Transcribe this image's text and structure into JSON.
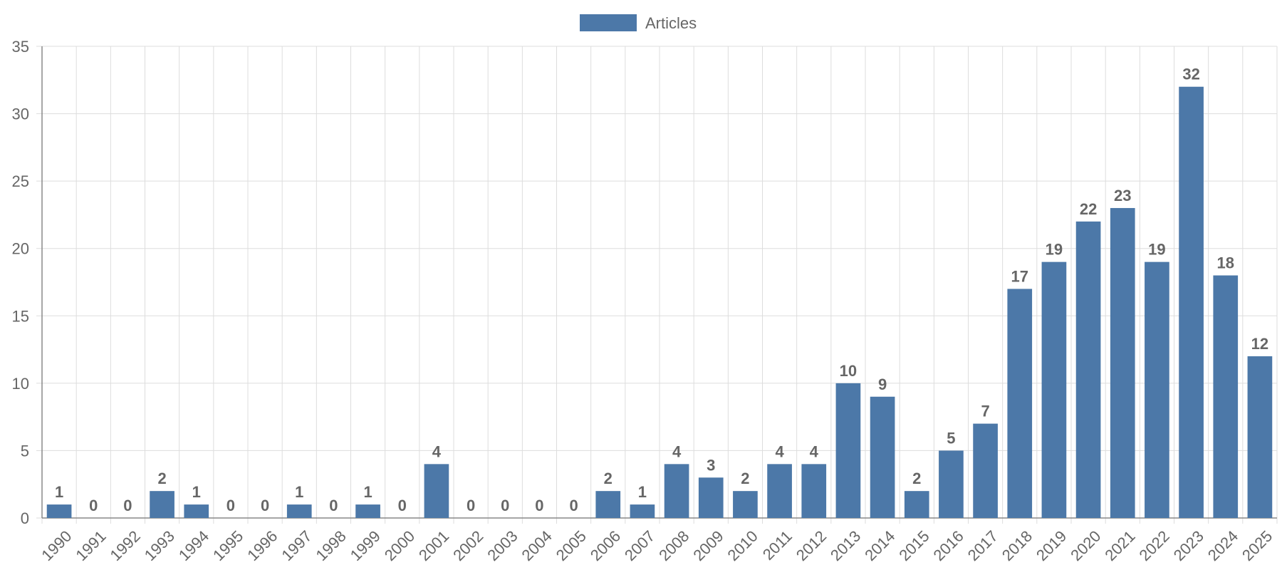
{
  "chart_data": {
    "type": "bar",
    "title": "",
    "xlabel": "",
    "ylabel": "",
    "categories": [
      "1990",
      "1991",
      "1992",
      "1993",
      "1994",
      "1995",
      "1996",
      "1997",
      "1998",
      "1999",
      "2000",
      "2001",
      "2002",
      "2003",
      "2004",
      "2005",
      "2006",
      "2007",
      "2008",
      "2009",
      "2010",
      "2011",
      "2012",
      "2013",
      "2014",
      "2015",
      "2016",
      "2017",
      "2018",
      "2019",
      "2020",
      "2021",
      "2022",
      "2023",
      "2024",
      "2025"
    ],
    "series": [
      {
        "name": "Articles",
        "values": [
          1,
          0,
          0,
          2,
          1,
          0,
          0,
          1,
          0,
          1,
          0,
          4,
          0,
          0,
          0,
          0,
          2,
          1,
          4,
          3,
          2,
          4,
          4,
          10,
          9,
          2,
          5,
          7,
          17,
          19,
          22,
          23,
          19,
          32,
          18,
          12
        ]
      }
    ],
    "ylim": [
      0,
      35
    ],
    "yticks": [
      0,
      5,
      10,
      15,
      20,
      25,
      30,
      35
    ],
    "grid": true,
    "legend_position": "top-center",
    "data_labels": true,
    "colors": {
      "bar": "#4c78a8",
      "grid": "#dddddd",
      "axis": "#888888",
      "text": "#666666"
    }
  }
}
